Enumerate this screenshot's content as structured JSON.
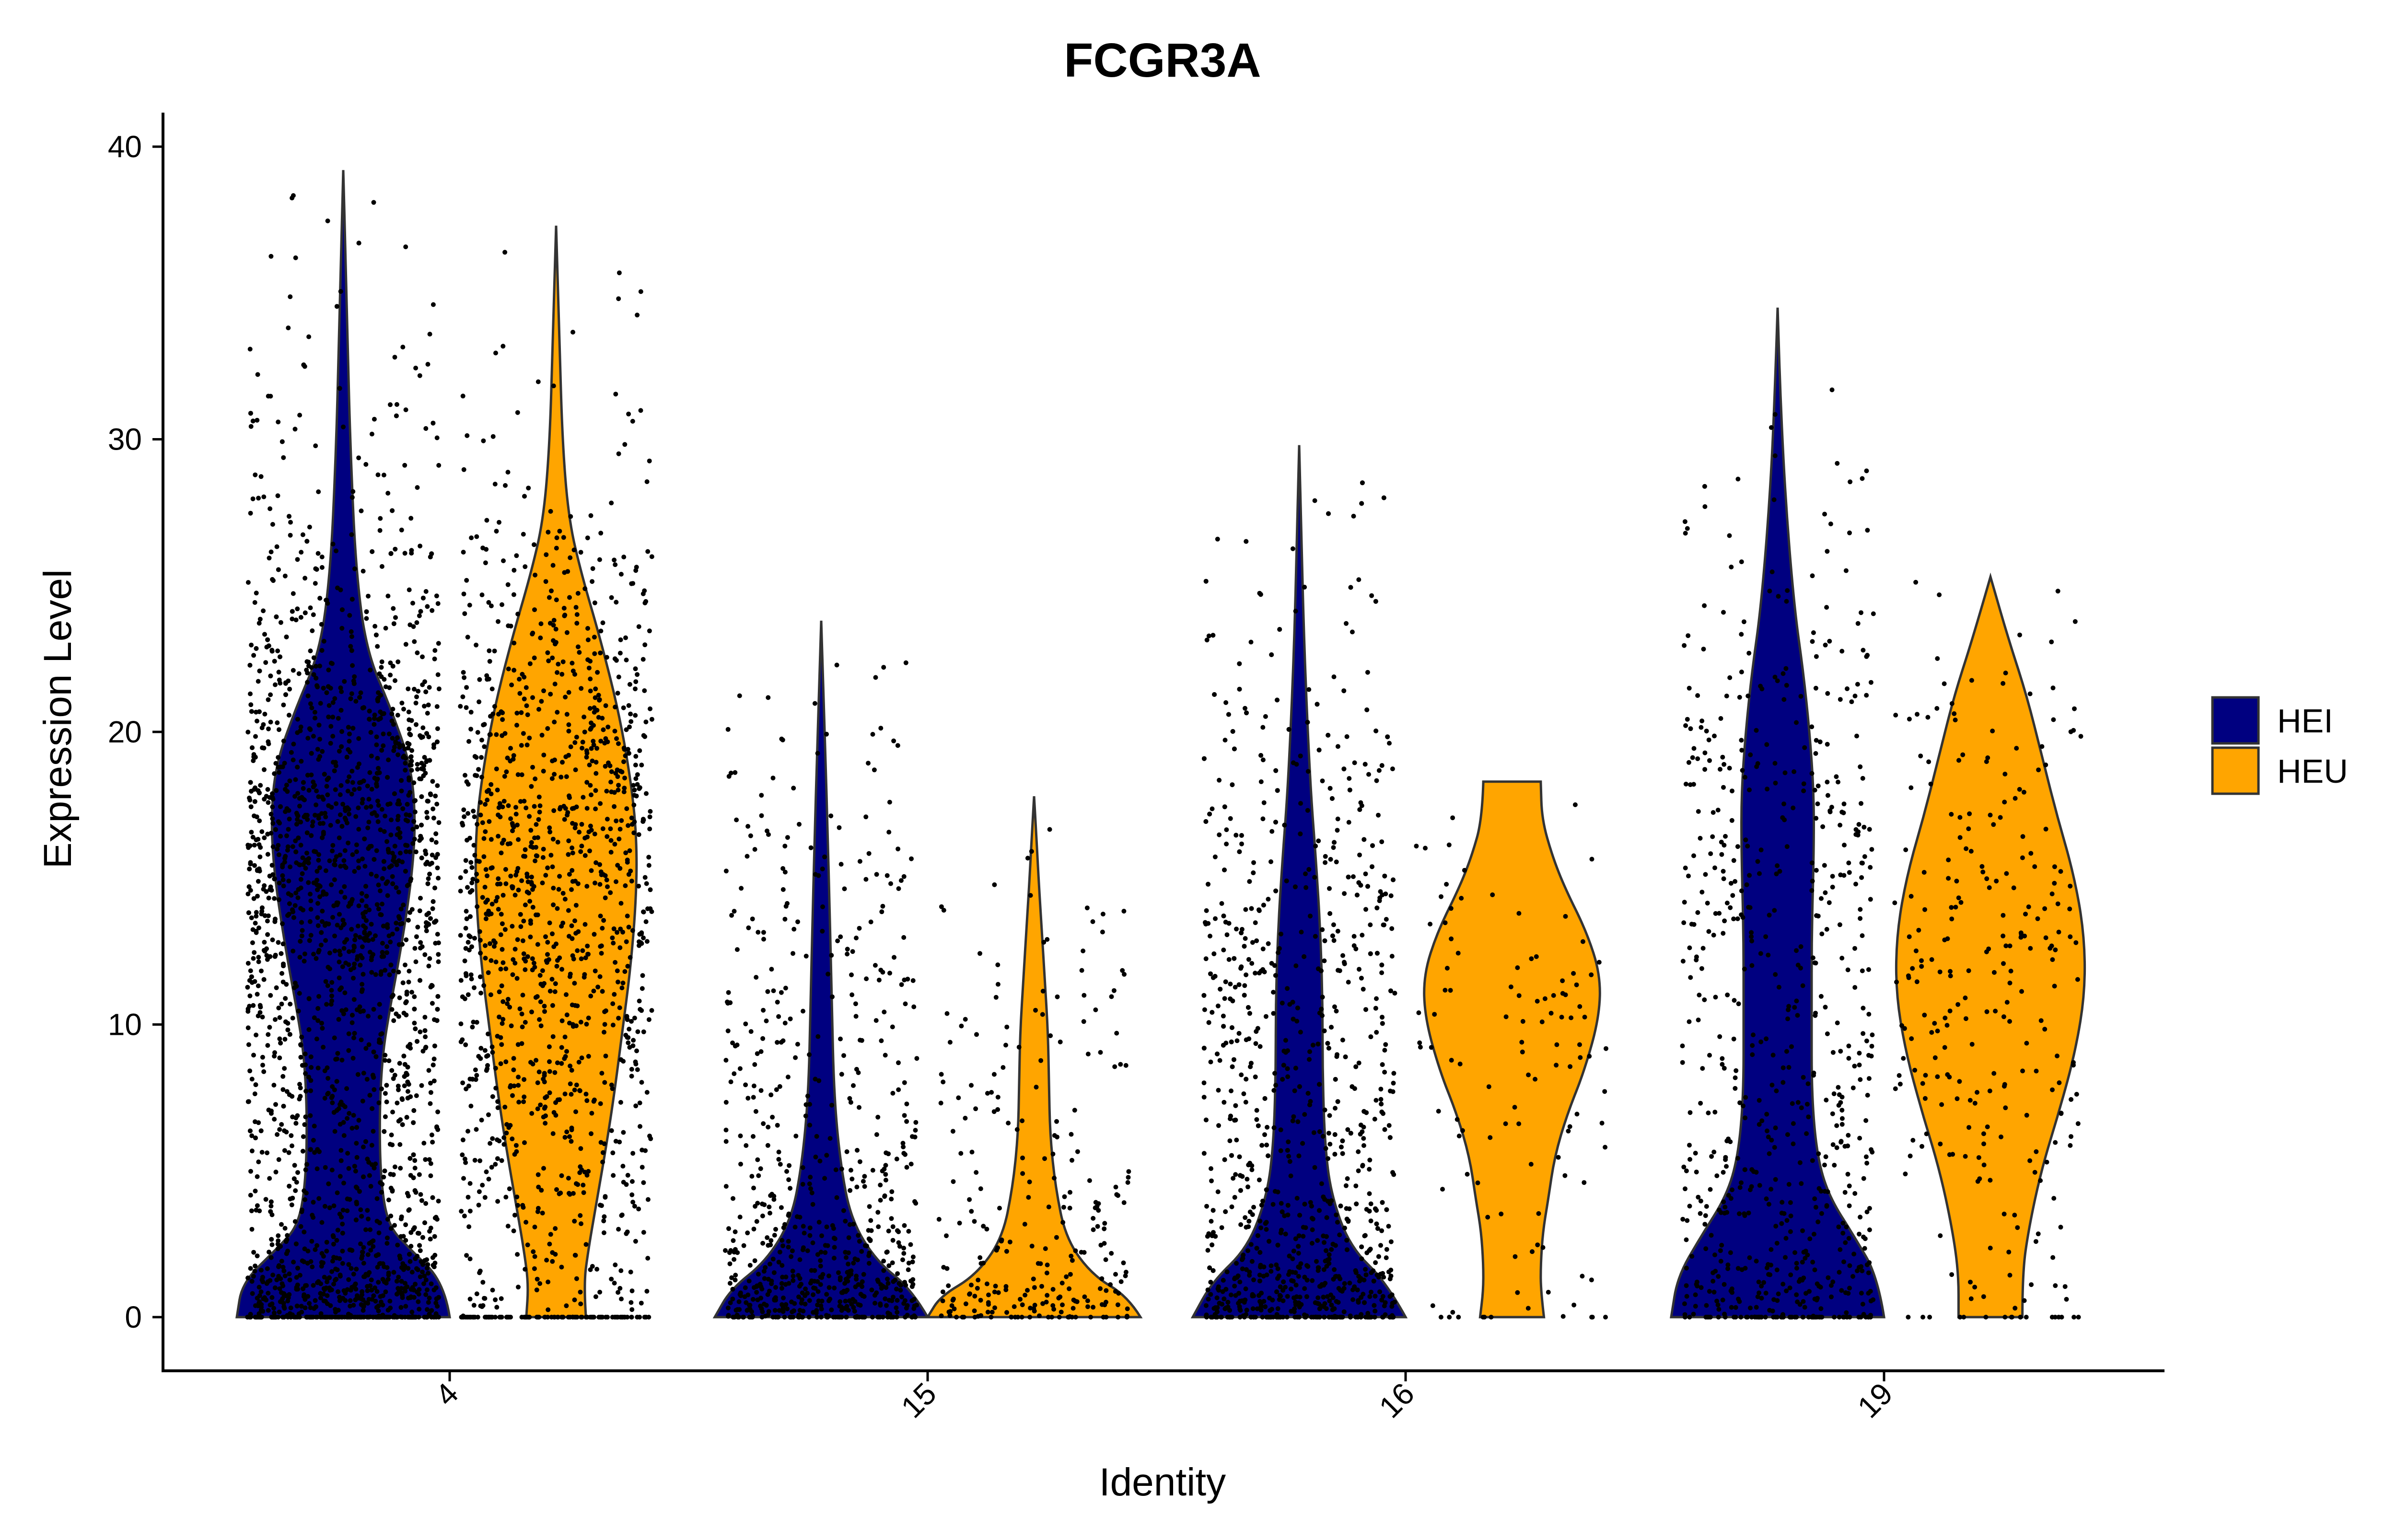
{
  "chart_data": {
    "type": "violin",
    "title": "FCGR3A",
    "xlabel": "Identity",
    "ylabel": "Expression Level",
    "categories": [
      "4",
      "15",
      "16",
      "19"
    ],
    "ylim": [
      -1.9,
      41
    ],
    "yticks": [
      "0",
      "10",
      "20",
      "30",
      "40"
    ],
    "legend": {
      "position": "right",
      "entries": [
        "HEI",
        "HEU"
      ]
    },
    "colors": {
      "HEI": "#000080",
      "HEU": "#FFA500",
      "outline": "#333333",
      "points": "#000000"
    },
    "series": [
      {
        "name": "HEI",
        "max": [
          39.2,
          23.8,
          29.8,
          34.5
        ],
        "point_density": [
          "very high",
          "medium",
          "high",
          "medium"
        ]
      },
      {
        "name": "HEU",
        "max": [
          37.3,
          17.8,
          18.3,
          25.3
        ],
        "point_density": [
          "high",
          "low",
          "sparse",
          "low"
        ]
      }
    ],
    "grid": false
  }
}
